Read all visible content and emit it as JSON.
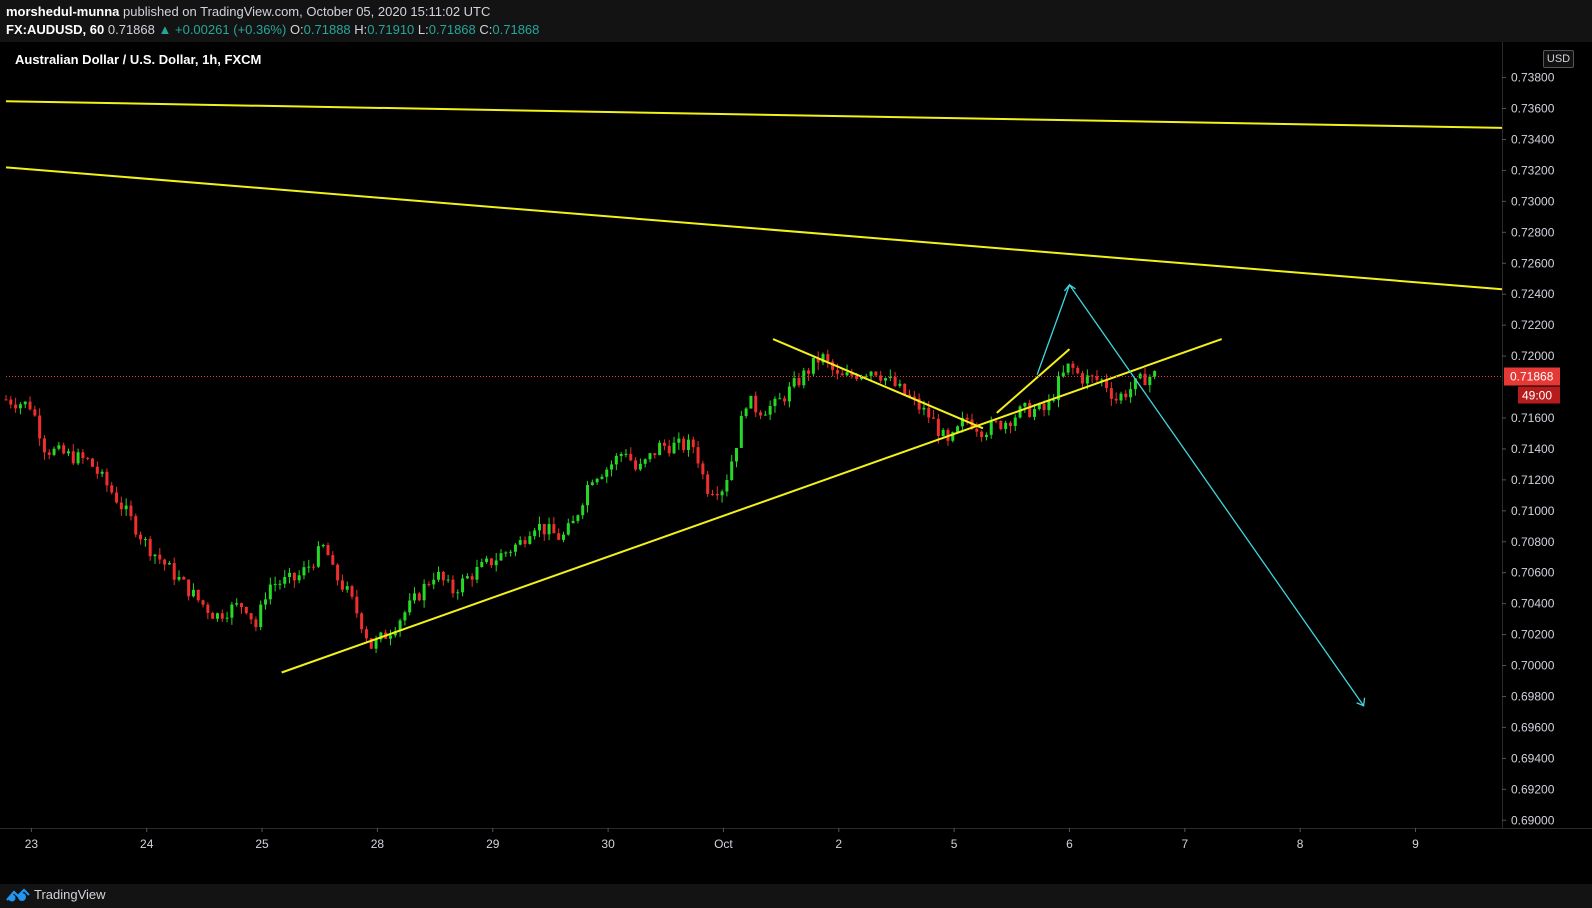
{
  "header": {
    "author": "morshedul-munna",
    "published_text": "published on TradingView.com, October 05, 2020 15:11:02 UTC",
    "symbol": "FX:AUDUSD, 60",
    "last": "0.71868",
    "change": "+0.00261 (+0.36%)",
    "o_label": "O:",
    "o": "0.71888",
    "h_label": "H:",
    "h": "0.71910",
    "l_label": "L:",
    "l": "0.71868",
    "c_label": "C:",
    "c": "0.71868"
  },
  "footer": {
    "brand": "TradingView"
  },
  "chart_data": {
    "type": "candlestick",
    "title": "Australian Dollar / U.S. Dollar, 1h, FXCM",
    "currency": "USD",
    "price_axis": [
      "0.73800",
      "0.73600",
      "0.73400",
      "0.73200",
      "0.73000",
      "0.72800",
      "0.72600",
      "0.72400",
      "0.72200",
      "0.72000",
      "0.71600",
      "0.71400",
      "0.71200",
      "0.71000",
      "0.70800",
      "0.70600",
      "0.70400",
      "0.70200",
      "0.70000",
      "0.69800",
      "0.69600",
      "0.69400",
      "0.69200",
      "0.69000"
    ],
    "ylim": [
      0.6895,
      0.7403
    ],
    "time_labels": [
      {
        "label": "23",
        "day": 0
      },
      {
        "label": "24",
        "day": 1
      },
      {
        "label": "25",
        "day": 2
      },
      {
        "label": "28",
        "day": 3
      },
      {
        "label": "29",
        "day": 4
      },
      {
        "label": "30",
        "day": 5
      },
      {
        "label": "Oct",
        "day": 6
      },
      {
        "label": "2",
        "day": 7
      },
      {
        "label": "5",
        "day": 8
      },
      {
        "label": "6",
        "day": 9
      },
      {
        "label": "7",
        "day": 10
      },
      {
        "label": "8",
        "day": 11
      },
      {
        "label": "9",
        "day": 12
      }
    ],
    "xlim": [
      -0.22,
      12.75
    ],
    "current_price": {
      "label": "0.71868",
      "value": 0.71868,
      "countdown": "49:00"
    },
    "colors": {
      "up": "#26d926",
      "down": "#ef2f2f",
      "trend": "#f2f21a",
      "projection": "#3fd6e0",
      "price_line": "#e53935"
    },
    "anchors": [
      [
        -0.22,
        0.7172
      ],
      [
        0.0,
        0.7168
      ],
      [
        0.12,
        0.714
      ],
      [
        0.5,
        0.7132
      ],
      [
        0.72,
        0.711
      ],
      [
        0.9,
        0.709
      ],
      [
        1.0,
        0.7078
      ],
      [
        1.2,
        0.7062
      ],
      [
        1.45,
        0.7042
      ],
      [
        1.6,
        0.7032
      ],
      [
        1.7,
        0.7036
      ],
      [
        1.85,
        0.704
      ],
      [
        1.95,
        0.7025
      ],
      [
        2.05,
        0.7052
      ],
      [
        2.3,
        0.7056
      ],
      [
        2.4,
        0.7064
      ],
      [
        2.55,
        0.7078
      ],
      [
        2.6,
        0.7062
      ],
      [
        2.75,
        0.7046
      ],
      [
        2.85,
        0.703
      ],
      [
        2.95,
        0.7012
      ],
      [
        3.1,
        0.7022
      ],
      [
        3.3,
        0.704
      ],
      [
        3.5,
        0.706
      ],
      [
        3.65,
        0.7048
      ],
      [
        3.8,
        0.7058
      ],
      [
        4.0,
        0.7068
      ],
      [
        4.25,
        0.708
      ],
      [
        4.35,
        0.7092
      ],
      [
        4.6,
        0.7082
      ],
      [
        4.7,
        0.7092
      ],
      [
        4.85,
        0.7122
      ],
      [
        5.0,
        0.7128
      ],
      [
        5.15,
        0.714
      ],
      [
        5.25,
        0.7125
      ],
      [
        5.45,
        0.7142
      ],
      [
        5.75,
        0.7142
      ],
      [
        5.85,
        0.7115
      ],
      [
        6.0,
        0.7115
      ],
      [
        6.1,
        0.714
      ],
      [
        6.2,
        0.7172
      ],
      [
        6.3,
        0.7165
      ],
      [
        6.45,
        0.7168
      ],
      [
        6.7,
        0.7188
      ],
      [
        6.85,
        0.72
      ],
      [
        7.0,
        0.7185
      ],
      [
        7.3,
        0.7192
      ],
      [
        7.5,
        0.718
      ],
      [
        7.65,
        0.717
      ],
      [
        7.8,
        0.716
      ],
      [
        7.95,
        0.7142
      ],
      [
        8.1,
        0.716
      ],
      [
        8.25,
        0.7152
      ],
      [
        8.45,
        0.7158
      ],
      [
        8.6,
        0.7165
      ],
      [
        8.8,
        0.7165
      ],
      [
        8.9,
        0.7182
      ],
      [
        9.0,
        0.7194
      ],
      [
        9.1,
        0.7186
      ],
      [
        9.3,
        0.7184
      ],
      [
        9.4,
        0.7172
      ],
      [
        9.55,
        0.718
      ],
      [
        9.65,
        0.7186
      ],
      [
        9.75,
        0.7188
      ]
    ],
    "trendlines": [
      {
        "x1": -0.22,
        "y1": 0.73647,
        "x2": 12.75,
        "y2": 0.73475
      },
      {
        "x1": -0.22,
        "y1": 0.7322,
        "x2": 12.75,
        "y2": 0.72432
      },
      {
        "x1": 2.17,
        "y1": 0.69955,
        "x2": 10.32,
        "y2": 0.7211
      },
      {
        "x1": 6.43,
        "y1": 0.7211,
        "x2": 8.25,
        "y2": 0.71533
      },
      {
        "x1": 8.37,
        "y1": 0.71633,
        "x2": 9.0,
        "y2": 0.72045
      }
    ],
    "projection": [
      [
        8.72,
        0.7188
      ],
      [
        9.0,
        0.7246
      ],
      [
        11.55,
        0.6974
      ]
    ]
  }
}
